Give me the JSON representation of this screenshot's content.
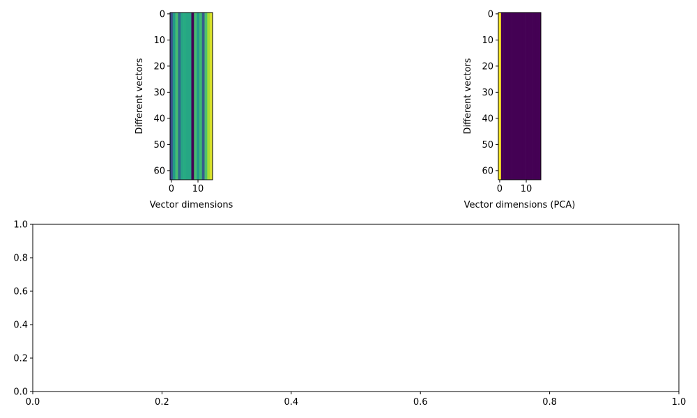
{
  "chart_data": [
    {
      "type": "heatmap",
      "title": "",
      "xlabel": "Vector dimensions",
      "ylabel": "Different vectors",
      "rows": 64,
      "columns": 16,
      "x_ticks": [
        0,
        10
      ],
      "y_ticks": [
        0,
        10,
        20,
        30,
        40,
        50,
        60
      ],
      "colormap": "viridis",
      "vmin": 0,
      "vmax": 1,
      "column_values": [
        0.25,
        0.55,
        0.7,
        0.35,
        0.6,
        0.62,
        0.6,
        0.6,
        0.0,
        0.7,
        0.55,
        0.68,
        0.3,
        0.72,
        0.88,
        0.95
      ]
    },
    {
      "type": "heatmap",
      "title": "",
      "xlabel": "Vector dimensions (PCA)",
      "ylabel": "Different vectors",
      "rows": 64,
      "columns": 16,
      "x_ticks": [
        0,
        10
      ],
      "y_ticks": [
        0,
        10,
        20,
        30,
        40,
        50,
        60
      ],
      "colormap": "viridis",
      "vmin": 0,
      "vmax": 1,
      "column_values": [
        1.0,
        0,
        0,
        0,
        0,
        0,
        0,
        0,
        0,
        0,
        0,
        0,
        0,
        0,
        0,
        0
      ]
    },
    {
      "type": "line",
      "title": "",
      "xlabel": "",
      "ylabel": "",
      "xlim": [
        0,
        1
      ],
      "ylim": [
        0,
        1
      ],
      "x_ticks": [
        "0.0",
        "0.2",
        "0.4",
        "0.6",
        "0.8",
        "1.0"
      ],
      "y_ticks": [
        "0.0",
        "0.2",
        "0.4",
        "0.6",
        "0.8",
        "1.0"
      ],
      "series": []
    }
  ]
}
